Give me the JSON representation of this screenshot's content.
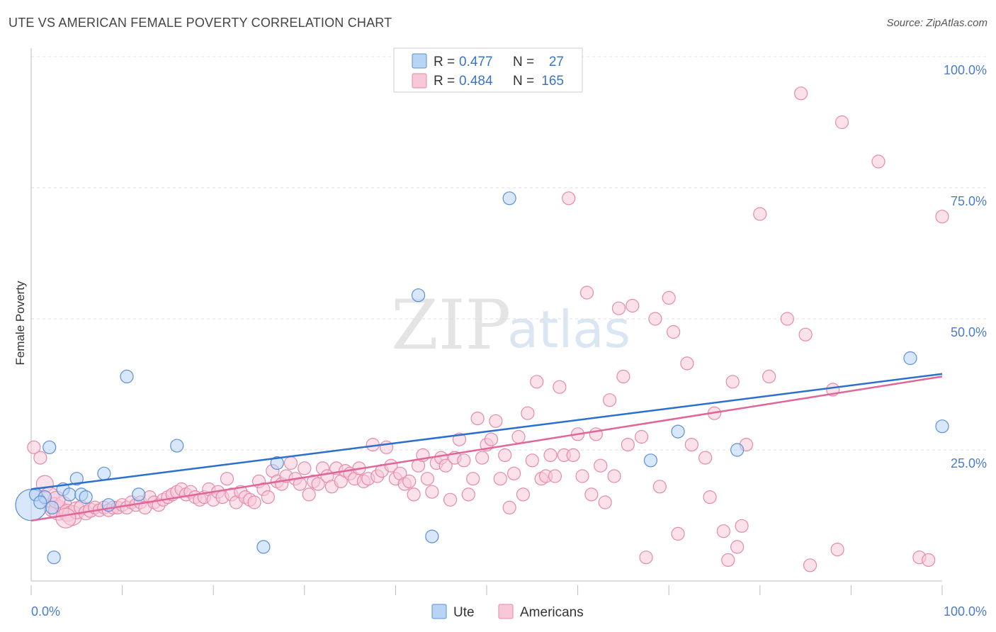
{
  "title": "UTE VS AMERICAN FEMALE POVERTY CORRELATION CHART",
  "source": "Source: ZipAtlas.com",
  "watermark": {
    "zip": "ZIP",
    "atlas": "atlas"
  },
  "colors": {
    "ute_fill": "#b8d4f5",
    "ute_stroke": "#5b8fd6",
    "ute_line": "#2b6fcf",
    "am_fill": "#f8c8d8",
    "am_stroke": "#e58aa8",
    "am_line": "#e0669a",
    "tick": "#4a7cc7",
    "grid": "#dddddd"
  },
  "legend": {
    "rows": [
      {
        "r_label": "R =",
        "r_value": "0.477",
        "n_label": "N =",
        "n_value": "27"
      },
      {
        "r_label": "R =",
        "r_value": "0.484",
        "n_label": "N =",
        "n_value": "165"
      }
    ]
  },
  "bottom_legend": [
    "Ute",
    "Americans"
  ],
  "chart_data": {
    "type": "scatter",
    "title": "UTE VS AMERICAN FEMALE POVERTY CORRELATION CHART",
    "xlabel": "",
    "ylabel": "Female Poverty",
    "xlim": [
      0,
      100
    ],
    "ylim": [
      0,
      100
    ],
    "x_tick_labels": [
      "0.0%",
      "100.0%"
    ],
    "y_tick_labels": [
      "25.0%",
      "50.0%",
      "75.0%",
      "100.0%"
    ],
    "y_ticks": [
      25,
      50,
      75,
      100
    ],
    "grid": "horizontal dashed",
    "legend_position": "top-center",
    "series": [
      {
        "name": "Ute",
        "trend": {
          "x": [
            0,
            100
          ],
          "y": [
            17.5,
            39.5
          ]
        },
        "points": [
          [
            0,
            14.5,
            22
          ],
          [
            0.5,
            16.5,
            9
          ],
          [
            1.5,
            16,
            9
          ],
          [
            2,
            25.5,
            9
          ],
          [
            2.5,
            4.5,
            9
          ],
          [
            3.5,
            17.5,
            9
          ],
          [
            4.2,
            16.5,
            9
          ],
          [
            5,
            19.5,
            9
          ],
          [
            5.5,
            16.5,
            9
          ],
          [
            6,
            16,
            9
          ],
          [
            8,
            20.5,
            9
          ],
          [
            8.5,
            14.5,
            9
          ],
          [
            10.5,
            39,
            9
          ],
          [
            11.8,
            16.5,
            9
          ],
          [
            16,
            25.8,
            9
          ],
          [
            25.5,
            6.5,
            9
          ],
          [
            27,
            22.5,
            9
          ],
          [
            42.5,
            54.5,
            9
          ],
          [
            44,
            8.5,
            9
          ],
          [
            52.5,
            73,
            9
          ],
          [
            68,
            23,
            9
          ],
          [
            71,
            28.5,
            9
          ],
          [
            77.5,
            25,
            9
          ],
          [
            96.5,
            42.5,
            9
          ],
          [
            100,
            29.5,
            9
          ],
          [
            1,
            15,
            9
          ],
          [
            2.3,
            14,
            9
          ]
        ]
      },
      {
        "name": "Americans",
        "trend": {
          "x": [
            0,
            100
          ],
          "y": [
            11.5,
            39
          ]
        },
        "points": [
          [
            0.3,
            25.5,
            9
          ],
          [
            1,
            23.5,
            9
          ],
          [
            1.5,
            18.5,
            12
          ],
          [
            2,
            16,
            14
          ],
          [
            2.5,
            14,
            14
          ],
          [
            3,
            13.5,
            14
          ],
          [
            3.5,
            14.5,
            12
          ],
          [
            4,
            13,
            12
          ],
          [
            4.5,
            12.5,
            14
          ],
          [
            5,
            13.5,
            12
          ],
          [
            5.5,
            14,
            10
          ],
          [
            6,
            13,
            10
          ],
          [
            6.5,
            13.5,
            10
          ],
          [
            7,
            14,
            9
          ],
          [
            7.5,
            13.5,
            9
          ],
          [
            8,
            14,
            9
          ],
          [
            8.5,
            13.5,
            9
          ],
          [
            9,
            14,
            9
          ],
          [
            9.5,
            14,
            9
          ],
          [
            10,
            14.5,
            9
          ],
          [
            10.5,
            14,
            9
          ],
          [
            11,
            15,
            9
          ],
          [
            11.5,
            14.5,
            9
          ],
          [
            12,
            15,
            9
          ],
          [
            12.5,
            14,
            9
          ],
          [
            13,
            16,
            9
          ],
          [
            13.5,
            15,
            9
          ],
          [
            14,
            14.5,
            9
          ],
          [
            14.5,
            15.5,
            9
          ],
          [
            15,
            16,
            9
          ],
          [
            15.5,
            16.5,
            9
          ],
          [
            16,
            17,
            9
          ],
          [
            16.5,
            17.5,
            9
          ],
          [
            17,
            16.5,
            9
          ],
          [
            17.5,
            17,
            9
          ],
          [
            18,
            16,
            9
          ],
          [
            18.5,
            15.5,
            9
          ],
          [
            19,
            16,
            9
          ],
          [
            19.5,
            17.5,
            9
          ],
          [
            20,
            15.5,
            9
          ],
          [
            20.5,
            17,
            9
          ],
          [
            21,
            16,
            9
          ],
          [
            21.5,
            19.5,
            9
          ],
          [
            22,
            16.5,
            9
          ],
          [
            22.5,
            15,
            9
          ],
          [
            23,
            17,
            9
          ],
          [
            23.5,
            16,
            9
          ],
          [
            24,
            15.5,
            9
          ],
          [
            24.5,
            15,
            9
          ],
          [
            25,
            19,
            9
          ],
          [
            25.5,
            17.5,
            9
          ],
          [
            26,
            16,
            9
          ],
          [
            26.5,
            21,
            9
          ],
          [
            27,
            19,
            9
          ],
          [
            27.5,
            18.5,
            9
          ],
          [
            28,
            20,
            9
          ],
          [
            28.5,
            22.5,
            9
          ],
          [
            29,
            19.5,
            9
          ],
          [
            29.5,
            18.5,
            9
          ],
          [
            30,
            21.5,
            9
          ],
          [
            30.5,
            16.5,
            9
          ],
          [
            31,
            19,
            9
          ],
          [
            31.5,
            18.5,
            9
          ],
          [
            32,
            21.5,
            9
          ],
          [
            32.5,
            20,
            9
          ],
          [
            33,
            18,
            9
          ],
          [
            33.5,
            21.5,
            9
          ],
          [
            34,
            19,
            9
          ],
          [
            34.5,
            21,
            9
          ],
          [
            35,
            20.5,
            9
          ],
          [
            35.5,
            19.5,
            9
          ],
          [
            36,
            21.5,
            9
          ],
          [
            36.5,
            19,
            9
          ],
          [
            37,
            19.5,
            9
          ],
          [
            37.5,
            26,
            9
          ],
          [
            38,
            20,
            9
          ],
          [
            38.5,
            21,
            9
          ],
          [
            39,
            25.5,
            9
          ],
          [
            39.5,
            22,
            9
          ],
          [
            40,
            19.5,
            9
          ],
          [
            40.5,
            20.5,
            9
          ],
          [
            41,
            18.5,
            9
          ],
          [
            41.5,
            19,
            9
          ],
          [
            42,
            16.5,
            9
          ],
          [
            42.5,
            22,
            9
          ],
          [
            43,
            24,
            9
          ],
          [
            43.5,
            19.5,
            9
          ],
          [
            44,
            17,
            9
          ],
          [
            44.5,
            22.5,
            9
          ],
          [
            45,
            23.5,
            9
          ],
          [
            45.5,
            22,
            9
          ],
          [
            46,
            15.5,
            9
          ],
          [
            46.5,
            23.5,
            9
          ],
          [
            47,
            27,
            9
          ],
          [
            47.5,
            23,
            9
          ],
          [
            48,
            16.5,
            9
          ],
          [
            48.5,
            19.5,
            9
          ],
          [
            49,
            31,
            9
          ],
          [
            49.5,
            23.5,
            9
          ],
          [
            50,
            26,
            9
          ],
          [
            50.5,
            27,
            9
          ],
          [
            51,
            30.5,
            9
          ],
          [
            51.5,
            19.5,
            9
          ],
          [
            52,
            24,
            9
          ],
          [
            52.5,
            14,
            9
          ],
          [
            53,
            20.5,
            9
          ],
          [
            53.5,
            27.5,
            9
          ],
          [
            54,
            16.5,
            9
          ],
          [
            54.5,
            32,
            9
          ],
          [
            55,
            23,
            9
          ],
          [
            55.5,
            38,
            9
          ],
          [
            56,
            19.5,
            9
          ],
          [
            56.5,
            20,
            9
          ],
          [
            57,
            24,
            9
          ],
          [
            57.5,
            20,
            9
          ],
          [
            58,
            37,
            9
          ],
          [
            58.5,
            24,
            9
          ],
          [
            59,
            73,
            9
          ],
          [
            59.5,
            24,
            9
          ],
          [
            60,
            28,
            9
          ],
          [
            60.5,
            20,
            9
          ],
          [
            61,
            55,
            9
          ],
          [
            61.5,
            16.5,
            9
          ],
          [
            62,
            28,
            9
          ],
          [
            62.5,
            22,
            9
          ],
          [
            63,
            15,
            9
          ],
          [
            63.5,
            34.5,
            9
          ],
          [
            64,
            20,
            9
          ],
          [
            64.5,
            52,
            9
          ],
          [
            65,
            39,
            9
          ],
          [
            65.5,
            26,
            9
          ],
          [
            66,
            52.5,
            9
          ],
          [
            67,
            27.5,
            9
          ],
          [
            67.5,
            4.5,
            9
          ],
          [
            68.5,
            50,
            9
          ],
          [
            69,
            18,
            9
          ],
          [
            70,
            54,
            9
          ],
          [
            70.5,
            47.5,
            9
          ],
          [
            71,
            9,
            9
          ],
          [
            72,
            41.5,
            9
          ],
          [
            72.5,
            26,
            9
          ],
          [
            74,
            23.5,
            9
          ],
          [
            74.5,
            16,
            9
          ],
          [
            75,
            32,
            9
          ],
          [
            76,
            9.5,
            9
          ],
          [
            76.5,
            4,
            9
          ],
          [
            77,
            38,
            9
          ],
          [
            77.5,
            6.5,
            9
          ],
          [
            78,
            10.5,
            9
          ],
          [
            78.5,
            26,
            9
          ],
          [
            80,
            70,
            9
          ],
          [
            81,
            39,
            9
          ],
          [
            83,
            50,
            9
          ],
          [
            84.5,
            93,
            9
          ],
          [
            85,
            47,
            9
          ],
          [
            85.5,
            3,
            9
          ],
          [
            88,
            36.5,
            9
          ],
          [
            88.5,
            6,
            9
          ],
          [
            89,
            87.5,
            9
          ],
          [
            93,
            80,
            9
          ],
          [
            97.5,
            4.5,
            9
          ],
          [
            98.5,
            4,
            9
          ],
          [
            100,
            69.5,
            9
          ],
          [
            2.8,
            15.5,
            12
          ],
          [
            3.8,
            12,
            14
          ]
        ]
      }
    ]
  }
}
